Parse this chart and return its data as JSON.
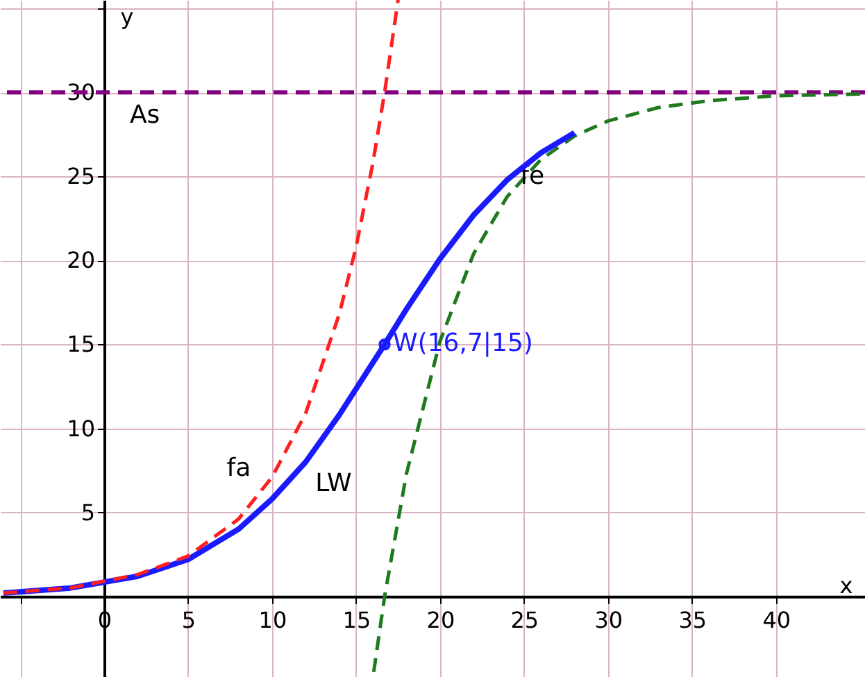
{
  "chart_data": {
    "type": "line",
    "xlabel": "x",
    "ylabel": "y",
    "xlim": [
      -6.2,
      45.3
    ],
    "ylim": [
      -4.8,
      35.5
    ],
    "xticks": [
      {
        "value": -5,
        "label": null
      },
      0,
      5,
      10,
      15,
      20,
      25,
      30,
      35,
      40
    ],
    "yticks": [
      {
        "value": 0,
        "label": null
      },
      5,
      10,
      15,
      20,
      25,
      30,
      {
        "value": 35,
        "label": null
      }
    ],
    "grid": true,
    "series": [
      {
        "name": "fa",
        "color": "#ff1f1f",
        "line_style": "dashed",
        "x": [
          -6,
          -2,
          2,
          5,
          8,
          10,
          12,
          14,
          15,
          16,
          16.7,
          17.5
        ],
        "values": [
          0.2,
          0.5,
          1.3,
          2.4,
          4.6,
          7.1,
          10.9,
          16.8,
          20.8,
          25.8,
          30,
          35.5
        ]
      },
      {
        "name": "LW",
        "color": "#1a1aff",
        "line_style": "solid",
        "x": [
          -6,
          -2,
          2,
          5,
          8,
          10,
          12,
          14,
          16.7,
          18,
          20,
          22,
          24,
          26,
          28
        ],
        "values": [
          0.2,
          0.5,
          1.2,
          2.2,
          4.0,
          5.8,
          8.0,
          10.8,
          15,
          17.1,
          20.1,
          22.7,
          24.8,
          26.4,
          27.6
        ]
      },
      {
        "name": "fe",
        "color": "#1f7a1f",
        "line_style": "dashed",
        "x": [
          16.05,
          16.7,
          18,
          20,
          22,
          24,
          26,
          28,
          30,
          33,
          36,
          40,
          45
        ],
        "values": [
          -4.5,
          0,
          7.3,
          15.2,
          20.4,
          23.8,
          26.0,
          27.4,
          28.3,
          29.1,
          29.5,
          29.8,
          29.9
        ]
      },
      {
        "type": "scatter",
        "marker": "circle",
        "color": "#1a1aff",
        "x": [
          16.7
        ],
        "values": [
          15
        ]
      }
    ],
    "ref_lines": [
      {
        "axis": "y",
        "value": 30,
        "label": "As",
        "color": "#800080",
        "line_style": "dashed"
      }
    ],
    "annotations": [
      {
        "text": "W(16,7|15)",
        "x": 16.7,
        "y": 15
      }
    ]
  }
}
